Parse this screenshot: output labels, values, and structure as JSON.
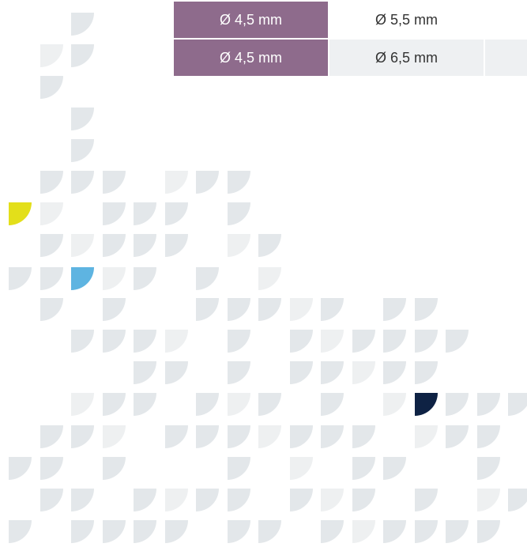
{
  "table": {
    "rows": [
      [
        "Ø 4,5 mm",
        "Ø 5,5 mm"
      ],
      [
        "Ø 4,5 mm",
        "Ø 6,5 mm"
      ]
    ]
  }
}
